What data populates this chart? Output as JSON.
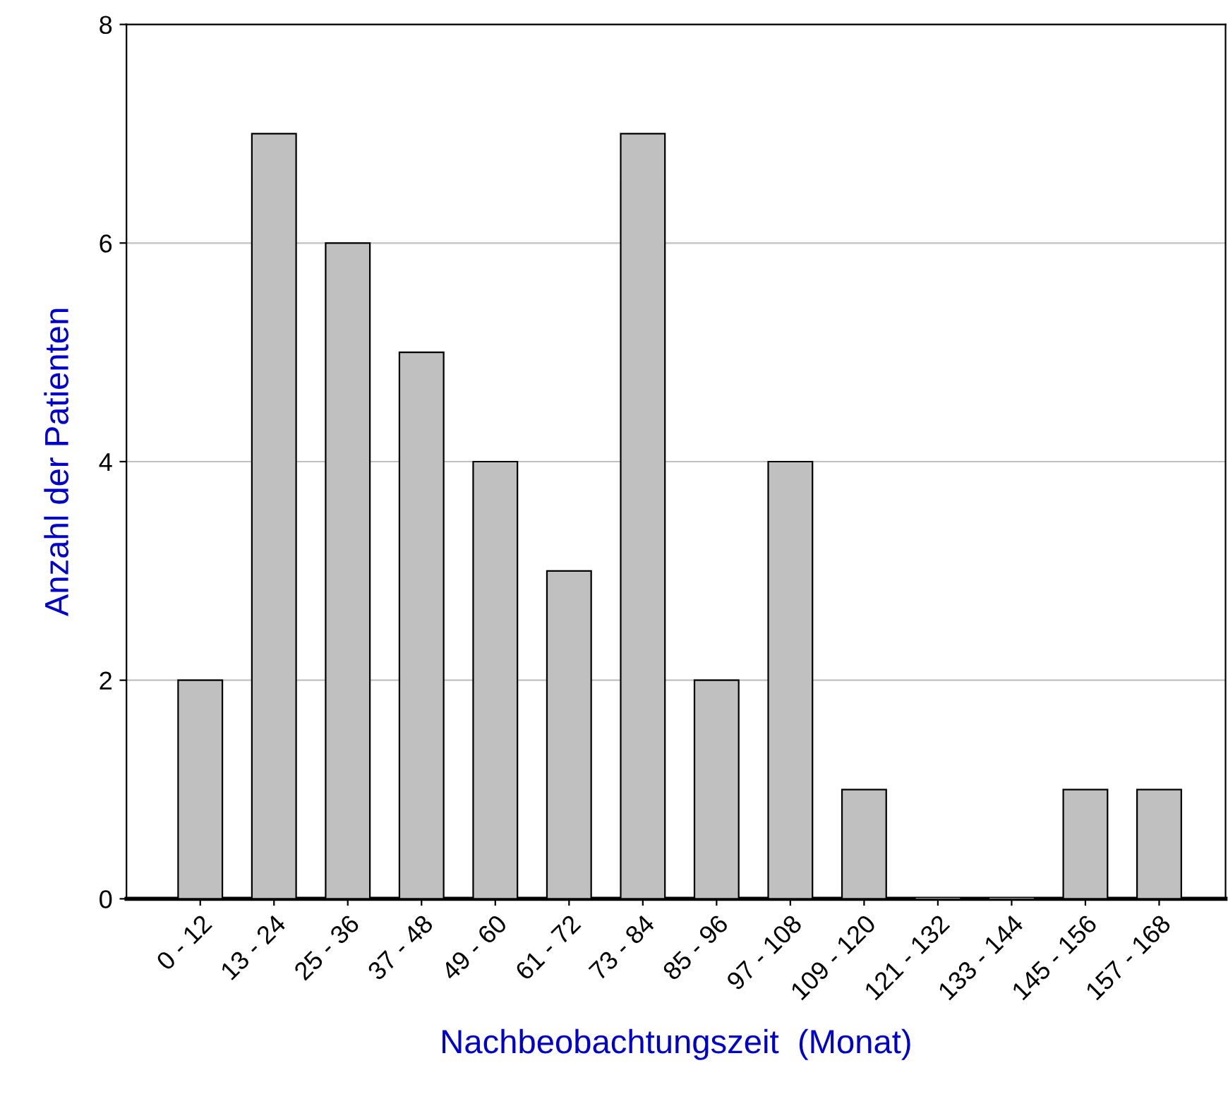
{
  "chart_data": {
    "type": "bar",
    "xlabel": "Nachbeobachtungszeit  (Monat)",
    "ylabel": "Anzahl der Patienten",
    "categories": [
      "0 - 12",
      "13 - 24",
      "25 - 36",
      "37 - 48",
      "49 - 60",
      "61 - 72",
      "73 - 84",
      "85 - 96",
      "97 - 108",
      "109 - 120",
      "121 - 132",
      "133 - 144",
      "145 - 156",
      "157 - 168"
    ],
    "values": [
      2,
      7,
      6,
      5,
      4,
      3,
      7,
      2,
      4,
      1,
      0,
      0,
      1,
      1
    ],
    "color": "#c0c0c0",
    "ylim": [
      0,
      8
    ],
    "yticks": [
      0,
      2,
      4,
      6,
      8
    ],
    "grid": "y",
    "legend": false
  }
}
